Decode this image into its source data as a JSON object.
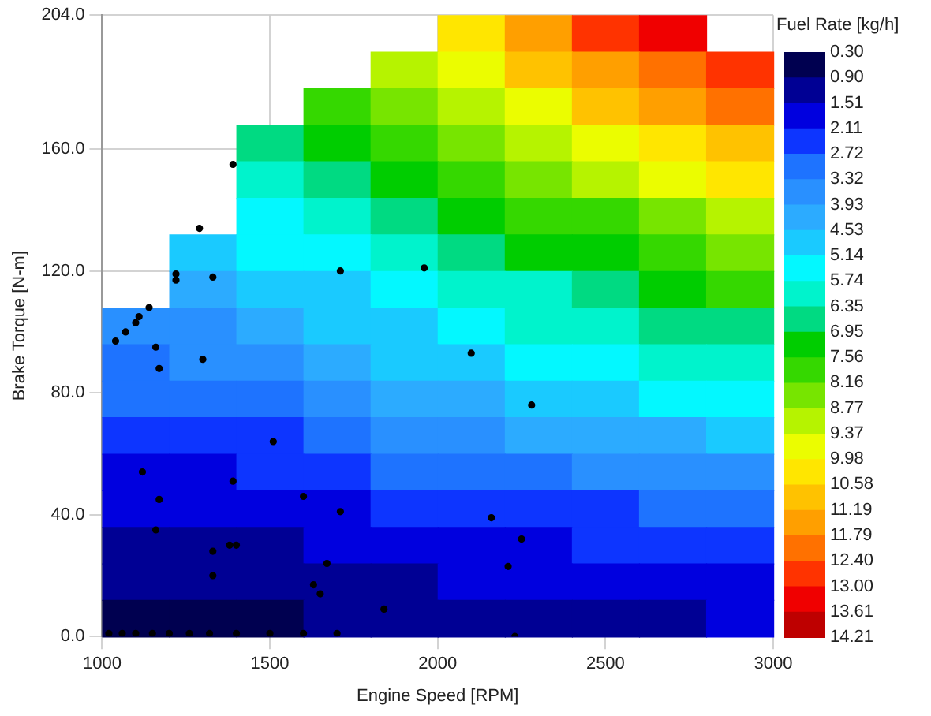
{
  "chart_data": {
    "type": "heatmap",
    "xlabel": "Engine Speed [RPM]",
    "ylabel": "Brake Torque [N-m]",
    "clabel": "Fuel Rate [kg/h]",
    "xlim": [
      1000,
      3000
    ],
    "ylim": [
      0,
      204
    ],
    "xticks": [
      1000,
      1500,
      2000,
      2500,
      3000
    ],
    "yticks": [
      {
        "value": 0,
        "label": "0.0"
      },
      {
        "value": 40,
        "label": "40.0"
      },
      {
        "value": 80,
        "label": "80.0"
      },
      {
        "value": 120,
        "label": "120.0"
      },
      {
        "value": 160,
        "label": "160.0"
      },
      {
        "value": 204,
        "label": "204.0"
      }
    ],
    "grid": true,
    "legend": false,
    "cticks": [
      {
        "value": 0.3,
        "label": "0.30"
      },
      {
        "value": 0.9,
        "label": "0.90"
      },
      {
        "value": 1.51,
        "label": "1.51"
      },
      {
        "value": 2.11,
        "label": "2.11"
      },
      {
        "value": 2.72,
        "label": "2.72"
      },
      {
        "value": 3.32,
        "label": "3.32"
      },
      {
        "value": 3.93,
        "label": "3.93"
      },
      {
        "value": 4.53,
        "label": "4.53"
      },
      {
        "value": 5.14,
        "label": "5.14"
      },
      {
        "value": 5.74,
        "label": "5.74"
      },
      {
        "value": 6.35,
        "label": "6.35"
      },
      {
        "value": 6.95,
        "label": "6.95"
      },
      {
        "value": 7.56,
        "label": "7.56"
      },
      {
        "value": 8.16,
        "label": "8.16"
      },
      {
        "value": 8.77,
        "label": "8.77"
      },
      {
        "value": 9.37,
        "label": "9.37"
      },
      {
        "value": 9.98,
        "label": "9.98"
      },
      {
        "value": 10.58,
        "label": "10.58"
      },
      {
        "value": 11.19,
        "label": "11.19"
      },
      {
        "value": 11.79,
        "label": "11.79"
      },
      {
        "value": 12.4,
        "label": "12.40"
      },
      {
        "value": 13.0,
        "label": "13.00"
      },
      {
        "value": 13.61,
        "label": "13.61"
      },
      {
        "value": 14.21,
        "label": "14.21"
      }
    ],
    "cells": [
      [
        null,
        null,
        null,
        null,
        null,
        10.4,
        11.4,
        12.4,
        13.0,
        null
      ],
      [
        null,
        null,
        null,
        null,
        8.9,
        9.7,
        10.6,
        11.5,
        12.1,
        12.7
      ],
      [
        null,
        null,
        null,
        7.7,
        8.4,
        9.1,
        9.8,
        10.6,
        11.2,
        11.8
      ],
      [
        null,
        null,
        6.6,
        7.2,
        7.8,
        8.4,
        9.0,
        9.7,
        10.3,
        10.9
      ],
      [
        null,
        null,
        6.1,
        6.7,
        7.2,
        7.8,
        8.3,
        8.9,
        9.5,
        10.0
      ],
      [
        null,
        null,
        5.7,
        6.2,
        6.7,
        7.2,
        7.6,
        8.1,
        8.7,
        9.2
      ],
      [
        null,
        4.9,
        5.2,
        5.7,
        6.1,
        6.5,
        7.0,
        7.4,
        7.9,
        8.4
      ],
      [
        null,
        4.4,
        4.7,
        5.1,
        5.6,
        6.0,
        6.3,
        6.7,
        7.2,
        7.6
      ],
      [
        3.7,
        3.9,
        4.1,
        4.6,
        5.1,
        5.5,
        5.8,
        6.1,
        6.5,
        6.9
      ],
      [
        3.2,
        3.4,
        3.5,
        4.1,
        4.6,
        5.0,
        5.3,
        5.5,
        5.9,
        6.2
      ],
      [
        2.8,
        2.9,
        2.9,
        3.5,
        4.1,
        4.5,
        4.7,
        4.9,
        5.2,
        5.5
      ],
      [
        2.4,
        2.5,
        2.6,
        3.0,
        3.5,
        3.8,
        4.0,
        4.2,
        4.4,
        4.7
      ],
      [
        2.1,
        2.1,
        2.2,
        2.6,
        2.9,
        3.1,
        3.3,
        3.4,
        3.7,
        3.9
      ],
      [
        1.7,
        1.8,
        1.9,
        2.1,
        2.3,
        2.5,
        2.6,
        2.7,
        2.9,
        3.1
      ],
      [
        1.4,
        1.4,
        1.5,
        1.7,
        1.9,
        2.0,
        2.1,
        2.3,
        2.4,
        2.6
      ],
      [
        1.0,
        1.1,
        1.1,
        1.3,
        1.5,
        1.6,
        1.7,
        1.8,
        2.0,
        2.1
      ],
      [
        0.7,
        0.7,
        0.8,
        0.9,
        1.0,
        1.2,
        1.3,
        1.4,
        1.5,
        1.7
      ]
    ],
    "series": [
      {
        "type": "scatter",
        "color": "#000000",
        "marker": "circle",
        "x": [
          1390,
          1290,
          1220,
          1220,
          1330,
          1710,
          1960,
          1140,
          1110,
          1100,
          1070,
          1040,
          1160,
          1170,
          1300,
          1510,
          1120,
          1390,
          1170,
          1600,
          1710,
          1160,
          1380,
          1400,
          1330,
          1330,
          1670,
          1630,
          1650,
          1840,
          2100,
          2280,
          2160,
          2250,
          2210,
          1020,
          1060,
          1100,
          1150,
          1200,
          1260,
          1320,
          1400,
          1500,
          1600,
          1700,
          2230
        ],
        "values": [
          155,
          134,
          119,
          117,
          118,
          120,
          121,
          108,
          105,
          103,
          100,
          97,
          95,
          88,
          91,
          64,
          54,
          51,
          45,
          46,
          41,
          35,
          30,
          30,
          28,
          20,
          24,
          17,
          14,
          9,
          93,
          76,
          39,
          32,
          23,
          1,
          1,
          1,
          1,
          1,
          1,
          1,
          1,
          1,
          1,
          1,
          0
        ]
      }
    ]
  }
}
